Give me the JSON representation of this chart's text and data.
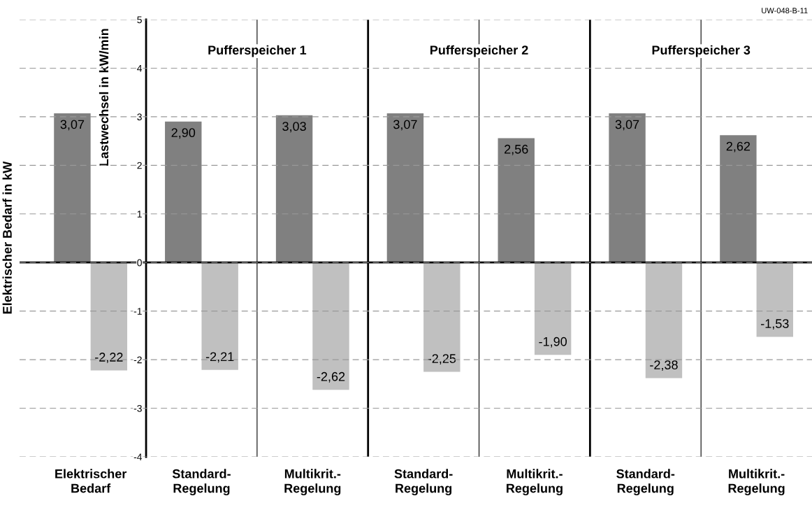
{
  "chart_data": {
    "type": "bar",
    "categories": [
      "Elektrischer\nBedarf",
      "Standard-\nRegelung",
      "Multikrit.-\nRegelung",
      "Standard-\nRegelung",
      "Multikrit.-\nRegelung",
      "Standard-\nRegelung",
      "Multikrit.-\nRegelung"
    ],
    "series": [
      {
        "color": "#808080",
        "values": [
          3.07,
          2.9,
          3.03,
          3.07,
          2.56,
          3.07,
          2.62
        ],
        "value_labels": [
          "3,07",
          "2,90",
          "3,03",
          "3,07",
          "2,56",
          "3,07",
          "2,62"
        ]
      },
      {
        "color": "#c0c0c0",
        "values": [
          -2.22,
          -2.21,
          -2.62,
          -2.25,
          -1.9,
          -2.38,
          -1.53
        ],
        "value_labels": [
          "-2,22",
          "-2,21",
          "-2,62",
          "-2,25",
          "-1,90",
          "-2,38",
          "-1,53"
        ]
      }
    ],
    "ylabel": "Elektrischer Bedarf in kW",
    "y2label": "Lastwechsel in kW/min",
    "ylim": [
      -4,
      5
    ],
    "yticks": [
      -4,
      -3,
      -2,
      -1,
      0,
      1,
      2,
      3,
      4,
      5
    ],
    "grid": true,
    "annotations": [
      "Pufferspeicher 1",
      "Pufferspeicher 2",
      "Pufferspeicher 3",
      "UW-048-B-11"
    ]
  }
}
